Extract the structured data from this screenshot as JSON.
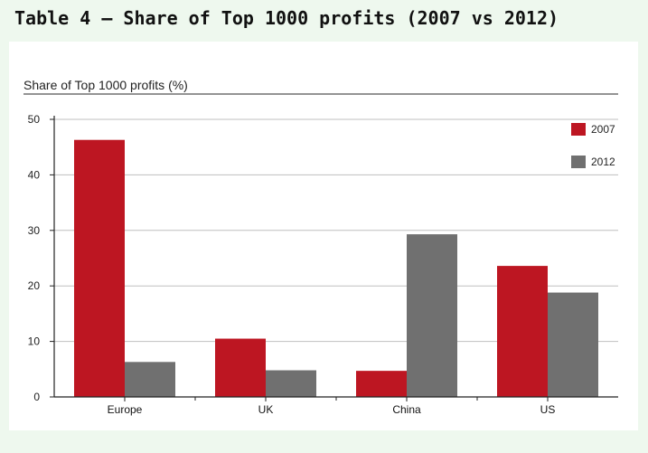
{
  "page": {
    "title": "Table 4 – Share of Top 1000 profits (2007 vs 2012)"
  },
  "chart_data": {
    "type": "bar",
    "ylabel": "Share of Top 1000 profits (%)",
    "xlabel": "",
    "ylim": [
      0,
      50
    ],
    "yticks": [
      0,
      10,
      20,
      30,
      40,
      50
    ],
    "grid": true,
    "legend_position": "top-right",
    "categories": [
      "Europe",
      "UK",
      "China",
      "US"
    ],
    "series": [
      {
        "name": "2007",
        "color": "#bd1622",
        "values": [
          46.3,
          10.5,
          4.7,
          23.6
        ]
      },
      {
        "name": "2012",
        "color": "#707070",
        "values": [
          6.3,
          4.8,
          29.3,
          18.8
        ]
      }
    ]
  }
}
